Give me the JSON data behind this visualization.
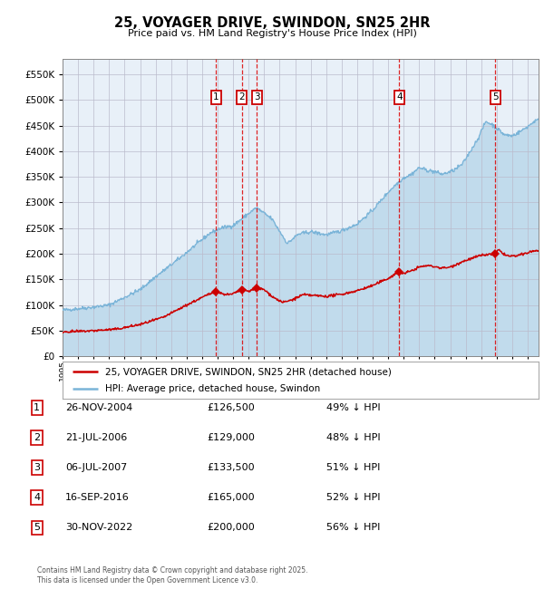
{
  "title": "25, VOYAGER DRIVE, SWINDON, SN25 2HR",
  "subtitle": "Price paid vs. HM Land Registry's House Price Index (HPI)",
  "footer": "Contains HM Land Registry data © Crown copyright and database right 2025.\nThis data is licensed under the Open Government Licence v3.0.",
  "legend_line1": "25, VOYAGER DRIVE, SWINDON, SN25 2HR (detached house)",
  "legend_line2": "HPI: Average price, detached house, Swindon",
  "hpi_color": "#7ab4d8",
  "price_color": "#cc0000",
  "background_color": "#e8f0f8",
  "ylim": [
    0,
    580000
  ],
  "yticks": [
    0,
    50000,
    100000,
    150000,
    200000,
    250000,
    300000,
    350000,
    400000,
    450000,
    500000,
    550000
  ],
  "ytick_labels": [
    "£0",
    "£50K",
    "£100K",
    "£150K",
    "£200K",
    "£250K",
    "£300K",
    "£350K",
    "£400K",
    "£450K",
    "£500K",
    "£550K"
  ],
  "xlim_start": 1995.0,
  "xlim_end": 2025.7,
  "sale_events": [
    {
      "num": 1,
      "year": 2004.9,
      "price": 126500
    },
    {
      "num": 2,
      "year": 2006.55,
      "price": 129000
    },
    {
      "num": 3,
      "year": 2007.52,
      "price": 133500
    },
    {
      "num": 4,
      "year": 2016.71,
      "price": 165000
    },
    {
      "num": 5,
      "year": 2022.92,
      "price": 200000
    }
  ],
  "table_rows": [
    {
      "num": 1,
      "date": "26-NOV-2004",
      "price": "£126,500",
      "pct": "49% ↓ HPI"
    },
    {
      "num": 2,
      "date": "21-JUL-2006",
      "price": "£129,000",
      "pct": "48% ↓ HPI"
    },
    {
      "num": 3,
      "date": "06-JUL-2007",
      "price": "£133,500",
      "pct": "51% ↓ HPI"
    },
    {
      "num": 4,
      "date": "16-SEP-2016",
      "price": "£165,000",
      "pct": "52% ↓ HPI"
    },
    {
      "num": 5,
      "date": "30-NOV-2022",
      "price": "£200,000",
      "pct": "56% ↓ HPI"
    }
  ]
}
